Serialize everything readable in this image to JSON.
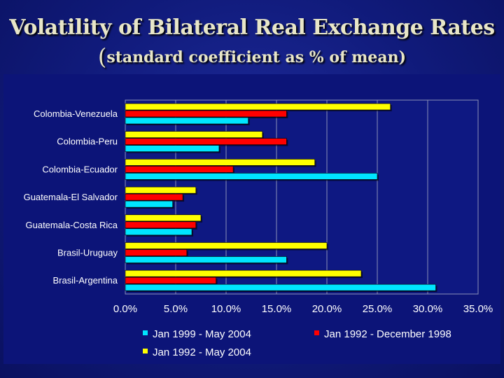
{
  "slide": {
    "title": "Volatility of Bilateral Real Exchange Rates",
    "subtitle_open": "(",
    "subtitle": "standard coefficient as % of mean)"
  },
  "colors": {
    "series_1999_2004": "#00e5ff",
    "series_1992_1998": "#ff0000",
    "series_1992_2004": "#ffff00",
    "panel_bg": "#0c1478",
    "grid": "#9aa0c0"
  },
  "chart_data": {
    "type": "bar",
    "orientation": "horizontal",
    "categories": [
      "Colombia-Venezuela",
      "Colombia-Peru",
      "Colombia-Ecuador",
      "Guatemala-El Salvador",
      "Guatemala-Costa Rica",
      "Brasil-Uruguay",
      "Brasil-Argentina"
    ],
    "series": [
      {
        "name": "Jan 1999 - May 2004",
        "color": "#00e5ff",
        "values": [
          12.2,
          9.3,
          25.0,
          4.7,
          6.6,
          16.0,
          30.8
        ]
      },
      {
        "name": "Jan 1992 - December 1998",
        "color": "#ff0000",
        "values": [
          16.0,
          16.0,
          10.7,
          5.7,
          7.0,
          6.1,
          9.0
        ]
      },
      {
        "name": "Jan 1992 - May 2004",
        "color": "#ffff00",
        "values": [
          26.3,
          13.6,
          18.8,
          7.0,
          7.5,
          20.0,
          23.4
        ]
      }
    ],
    "xlim": [
      0,
      35
    ],
    "xticks": [
      "0.0%",
      "5.0%",
      "10.0%",
      "15.0%",
      "20.0%",
      "25.0%",
      "30.0%",
      "35.0%"
    ],
    "grid": "vertical",
    "legend_position": "bottom"
  }
}
